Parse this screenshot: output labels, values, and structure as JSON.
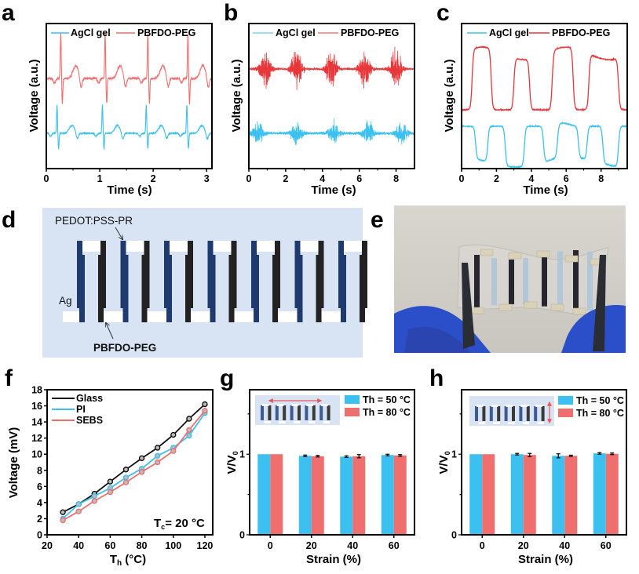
{
  "figure": {
    "panel_labels": [
      "a",
      "b",
      "c",
      "d",
      "e",
      "f",
      "g",
      "h"
    ],
    "colors": {
      "blue": "#3cc0f0",
      "red_light": "#ef6f6f",
      "red": "#e8373a",
      "black": "#111111",
      "diagram_bg": "#d8e3f4",
      "pedot": "#1e3a6e",
      "pbfdo": "#222222"
    }
  },
  "chart_data": [
    {
      "panel": "a",
      "type": "line",
      "title": "",
      "xlabel": "Time (s)",
      "ylabel": "Voltage (a.u.)",
      "xlim": [
        0,
        3.1
      ],
      "xticks": [
        "0",
        "1",
        "2",
        "3"
      ],
      "legend": [
        "AgCl gel",
        "PBFDO-PEG"
      ],
      "legend_position": "top",
      "series": [
        {
          "name": "AgCl gel",
          "signal": "ECG",
          "beat_times": [
            0.2,
            1.05,
            1.87,
            2.63
          ],
          "offset": "lower"
        },
        {
          "name": "PBFDO-PEG",
          "signal": "ECG",
          "beat_times": [
            0.27,
            1.1,
            1.9,
            2.65
          ],
          "offset": "upper"
        }
      ]
    },
    {
      "panel": "b",
      "type": "line",
      "xlabel": "Time (s)",
      "ylabel": "Voltage (a.u.)",
      "xlim": [
        0,
        9
      ],
      "xticks": [
        "0",
        "2",
        "4",
        "6",
        "8"
      ],
      "legend": [
        "AgCl gel",
        "PBFDO-PEG"
      ],
      "legend_position": "top",
      "series": [
        {
          "name": "AgCl gel",
          "signal": "EMG bursts",
          "burst_times": [
            0.5,
            2.6,
            4.6,
            6.5,
            8.3
          ],
          "offset": "lower"
        },
        {
          "name": "PBFDO-PEG",
          "signal": "EMG bursts",
          "burst_times": [
            0.9,
            2.6,
            4.5,
            6.3,
            8.0
          ],
          "offset": "upper"
        }
      ]
    },
    {
      "panel": "c",
      "type": "line",
      "xlabel": "Time (s)",
      "ylabel": "Voltage (a.u.)",
      "xlim": [
        0,
        9.5
      ],
      "xticks": [
        "0",
        "2",
        "4",
        "6",
        "8"
      ],
      "legend": [
        "AgCl gel",
        "PBFDO-PEG"
      ],
      "legend_position": "top",
      "series": [
        {
          "name": "AgCl gel",
          "signal": "EOG square wave",
          "low_intervals": [
            [
              0.8,
              1.5
            ],
            [
              2.5,
              3.6
            ],
            [
              4.7,
              5.5
            ],
            [
              6.7,
              7.0
            ],
            [
              7.2,
              9.0
            ]
          ],
          "offset": "lower"
        },
        {
          "name": "PBFDO-PEG",
          "signal": "EOG square wave",
          "high_intervals": [
            [
              0.6,
              1.7
            ],
            [
              3.0,
              3.9
            ],
            [
              5.2,
              6.4
            ],
            [
              7.3,
              9.0
            ]
          ],
          "offset": "upper"
        }
      ]
    },
    {
      "panel": "f",
      "type": "line",
      "xlabel": "Th (°C)",
      "ylabel": "Voltage (mV)",
      "xlim": [
        20,
        125
      ],
      "ylim": [
        0,
        18
      ],
      "xticks": [
        20,
        40,
        60,
        80,
        100,
        120
      ],
      "yticks": [
        0,
        2,
        4,
        6,
        8,
        10,
        12,
        14,
        16,
        18
      ],
      "annotation": "Tc= 20 °C",
      "legend_position": "top-left",
      "x": [
        30,
        40,
        50,
        60,
        70,
        80,
        90,
        100,
        110,
        120
      ],
      "series": [
        {
          "name": "Glass",
          "values": [
            2.8,
            3.8,
            5.1,
            6.6,
            8.1,
            9.5,
            10.8,
            12.4,
            14.4,
            16.2
          ]
        },
        {
          "name": "PI",
          "values": [
            2.0,
            3.8,
            4.8,
            5.8,
            7.1,
            8.2,
            9.8,
            10.8,
            12.3,
            15.1
          ]
        },
        {
          "name": "SEBS",
          "values": [
            1.8,
            2.9,
            4.2,
            5.3,
            6.5,
            7.8,
            9.0,
            10.4,
            13.0,
            15.4
          ]
        }
      ]
    },
    {
      "panel": "g",
      "type": "bar",
      "xlabel": "Strain (%)",
      "ylabel": "V/V0",
      "ylim": [
        0,
        1.8
      ],
      "yticks": [
        "0",
        "1"
      ],
      "categories": [
        "0",
        "20",
        "40",
        "60"
      ],
      "legend_position": "top-right",
      "inset": "horizontal stretch arrow",
      "series": [
        {
          "name": "Th = 50 °C",
          "values": [
            1.0,
            0.98,
            0.97,
            0.99
          ],
          "errors": [
            0,
            0.005,
            0.005,
            0.005
          ]
        },
        {
          "name": "Th = 80 °C",
          "values": [
            1.0,
            0.975,
            0.975,
            0.985
          ],
          "errors": [
            0,
            0.005,
            0.015,
            0.005
          ]
        }
      ]
    },
    {
      "panel": "h",
      "type": "bar",
      "xlabel": "Strain (%)",
      "ylabel": "V/V0",
      "ylim": [
        0,
        1.8
      ],
      "yticks": [
        "0",
        "1"
      ],
      "categories": [
        "0",
        "20",
        "40",
        "60"
      ],
      "legend_position": "top-right",
      "inset": "vertical stretch arrow",
      "series": [
        {
          "name": "Th = 50 °C",
          "values": [
            1.0,
            1.0,
            0.98,
            1.01
          ],
          "errors": [
            0,
            0.005,
            0.02,
            0.005
          ]
        },
        {
          "name": "Th = 80 °C",
          "values": [
            1.0,
            0.99,
            0.98,
            1.005
          ],
          "errors": [
            0,
            0.015,
            0.003,
            0.005
          ]
        }
      ]
    }
  ],
  "diagram_d": {
    "labels": {
      "top": "PEDOT:PSS-PR",
      "left": "Ag",
      "bottom": "PBFDO-PEG"
    },
    "leg_pairs": 7
  },
  "photo_e": {
    "description": "Flexible transparent thermoelectric device held by tweezers with blue gloves"
  }
}
